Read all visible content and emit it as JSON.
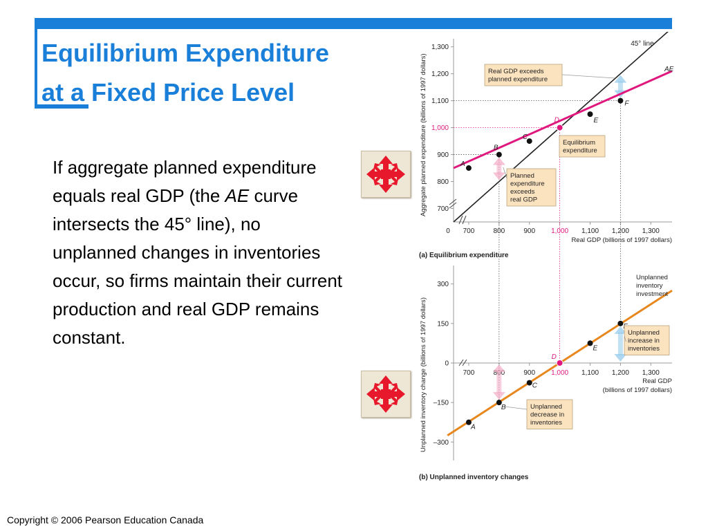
{
  "title": {
    "line1": "Equilibrium Expenditure",
    "line2": "at a Fixed Price Level"
  },
  "body": {
    "part1": "If aggregate planned expenditure equals real GDP (the ",
    "emph": "AE",
    "part2": " curve intersects the 45° line), no unplanned changes in inventories occur, so firms maintain their current production and real GDP remains constant."
  },
  "navigation_icons": [
    "move-arrows-icon",
    "move-arrows-icon"
  ],
  "copyright": "Copyright © 2006 Pearson Education Canada",
  "colors": {
    "accent": "#1a7fd8",
    "ae_curve": "#e0187e",
    "inventory_curve": "#e8871e",
    "line_45": "#222222",
    "callout_bg": "#fbe3c0"
  },
  "chart_data": [
    {
      "type": "line",
      "caption": "(a) Equilibrium expenditure",
      "ylabel": "Aggregate planned expenditure (billions of 1997 dollars)",
      "xlabel": "Real GDP (billions of 1997 dollars)",
      "x_ticks": [
        "0",
        "700",
        "800",
        "900",
        "1,000",
        "1,100",
        "1,200",
        "1,300"
      ],
      "y_ticks": [
        "700",
        "800",
        "900",
        "1,000",
        "1,100",
        "1,200",
        "1,300"
      ],
      "xlim": [
        650,
        1370
      ],
      "ylim": [
        650,
        1330
      ],
      "series": [
        {
          "name": "AE",
          "x": [
            650,
            1370
          ],
          "y": [
            850,
            1210
          ]
        },
        {
          "name": "45° line",
          "x": [
            650,
            1370
          ],
          "y": [
            650,
            1370
          ]
        }
      ],
      "points": [
        {
          "label": "A",
          "x": 700,
          "y": 850
        },
        {
          "label": "B",
          "x": 800,
          "y": 900
        },
        {
          "label": "C",
          "x": 900,
          "y": 950
        },
        {
          "label": "D",
          "x": 1000,
          "y": 1000
        },
        {
          "label": "E",
          "x": 1100,
          "y": 1050
        },
        {
          "label": "F",
          "x": 1200,
          "y": 1100
        }
      ],
      "annotations": [
        "Real GDP exceeds planned expenditure",
        "Equilibrium expenditure",
        "Planned expenditure exceeds real GDP"
      ]
    },
    {
      "type": "line",
      "caption": "(b) Unplanned inventory changes",
      "ylabel": "Unplanned inventory change (billions of 1997 dollars)",
      "xlabel": "Real GDP (billions of 1997 dollars)",
      "x_ticks": [
        "700",
        "800",
        "900",
        "1,000",
        "1,100",
        "1,200",
        "1,300"
      ],
      "y_ticks": [
        "300",
        "150",
        "0",
        "–150",
        "–300"
      ],
      "xlim": [
        650,
        1370
      ],
      "ylim": [
        -370,
        370
      ],
      "series": [
        {
          "name": "Unplanned inventory investment",
          "x": [
            630,
            1370
          ],
          "y": [
            -275,
            275
          ]
        }
      ],
      "points": [
        {
          "label": "A",
          "x": 700,
          "y": -225
        },
        {
          "label": "B",
          "x": 800,
          "y": -150
        },
        {
          "label": "C",
          "x": 900,
          "y": -75
        },
        {
          "label": "D",
          "x": 1000,
          "y": 0
        },
        {
          "label": "E",
          "x": 1100,
          "y": 75
        },
        {
          "label": "F",
          "x": 1200,
          "y": 150
        }
      ],
      "annotations": [
        "Unplanned increase in inventories",
        "Unplanned decrease in inventories"
      ]
    }
  ]
}
